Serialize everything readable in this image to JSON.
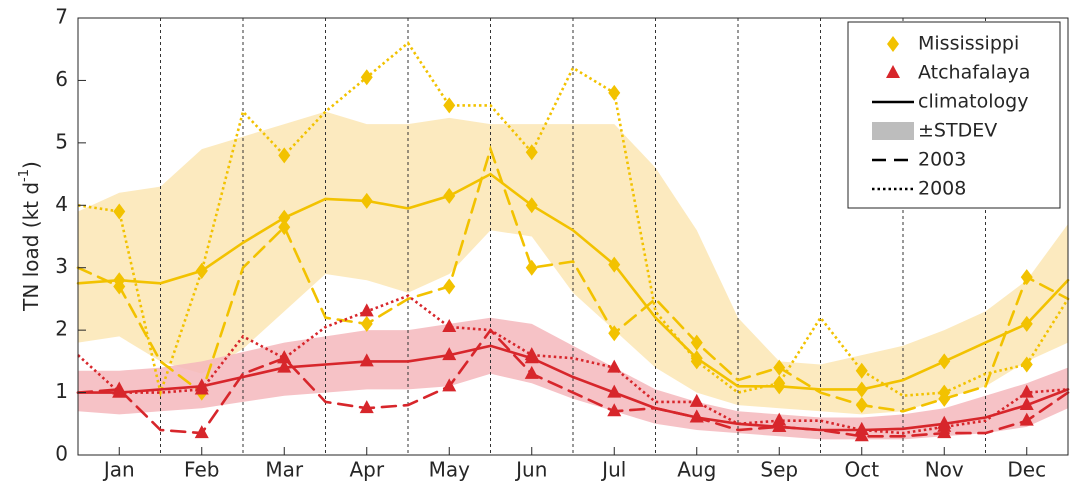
{
  "chart_data": {
    "type": "line",
    "ylabel": "TN load (kt d",
    "ylabel_sup": "-1",
    "ylabel_end": ")",
    "x": [
      0,
      0.5,
      1,
      1.5,
      2,
      2.5,
      3,
      3.5,
      4,
      4.5,
      5,
      5.5,
      6,
      6.5,
      7,
      7.5,
      8,
      8.5,
      9,
      9.5,
      10,
      10.5,
      11,
      11.5,
      12
    ],
    "xlim": [
      0,
      12
    ],
    "xticks": [
      {
        "value": 0.5,
        "label": "Jan"
      },
      {
        "value": 1.5,
        "label": "Feb"
      },
      {
        "value": 2.5,
        "label": "Mar"
      },
      {
        "value": 3.5,
        "label": "Apr"
      },
      {
        "value": 4.5,
        "label": "May"
      },
      {
        "value": 5.5,
        "label": "Jun"
      },
      {
        "value": 6.5,
        "label": "Jul"
      },
      {
        "value": 7.5,
        "label": "Aug"
      },
      {
        "value": 8.5,
        "label": "Sep"
      },
      {
        "value": 9.5,
        "label": "Oct"
      },
      {
        "value": 10.5,
        "label": "Nov"
      },
      {
        "value": 11.5,
        "label": "Dec"
      }
    ],
    "ylim": [
      0,
      7
    ],
    "yticks": [
      0,
      1,
      2,
      3,
      4,
      5,
      6,
      7
    ],
    "legend": "upper right",
    "band_name": "±STDEV",
    "band_legend_color": "#bdbdbd",
    "styles": [
      {
        "name": "climatology",
        "dash": "solid"
      },
      {
        "name": "2003",
        "dash": "dash"
      },
      {
        "name": "2008",
        "dash": "dot"
      }
    ],
    "groups": [
      {
        "name": "Mississippi",
        "color": "#f2c200",
        "fill": "#fbe6b4",
        "marker": "diamond",
        "band": {
          "upper": [
            3.9,
            4.2,
            4.3,
            4.9,
            5.1,
            5.3,
            5.5,
            5.3,
            5.3,
            5.4,
            5.3,
            5.3,
            5.3,
            5.3,
            4.6,
            3.6,
            2.2,
            1.5,
            1.45,
            1.6,
            1.75,
            2.0,
            2.3,
            2.8,
            3.7
          ],
          "lower": [
            1.8,
            1.9,
            1.5,
            1.3,
            1.7,
            2.3,
            2.9,
            2.8,
            2.6,
            2.9,
            3.6,
            3.5,
            2.6,
            2.0,
            1.4,
            1.0,
            0.8,
            0.75,
            0.7,
            0.65,
            0.7,
            0.9,
            1.1,
            1.5,
            1.8
          ]
        },
        "lines": [
          [
            2.75,
            2.8,
            2.75,
            2.95,
            3.4,
            3.8,
            4.1,
            4.07,
            3.95,
            4.15,
            4.5,
            4.0,
            3.6,
            3.05,
            2.2,
            1.55,
            1.1,
            1.1,
            1.05,
            1.05,
            1.2,
            1.5,
            1.8,
            2.1,
            2.8
          ],
          [
            3.0,
            2.7,
            1.5,
            1.0,
            3.0,
            3.65,
            2.2,
            2.1,
            2.5,
            2.7,
            4.9,
            3.0,
            3.1,
            1.95,
            2.5,
            1.8,
            1.2,
            1.4,
            1.0,
            0.8,
            0.7,
            0.9,
            1.1,
            2.85,
            2.5
          ],
          [
            4.0,
            3.9,
            1.0,
            2.95,
            5.5,
            4.8,
            5.5,
            6.05,
            6.6,
            5.6,
            5.6,
            4.85,
            6.2,
            5.8,
            2.3,
            1.5,
            1.0,
            1.15,
            2.2,
            1.35,
            0.95,
            1.0,
            1.3,
            1.45,
            2.5
          ]
        ]
      },
      {
        "name": "Atchafalaya",
        "color": "#d7262b",
        "fill": "#f4b7bc",
        "marker": "triangle",
        "band": {
          "upper": [
            1.35,
            1.35,
            1.4,
            1.5,
            1.65,
            1.8,
            1.9,
            2.0,
            2.0,
            2.1,
            2.2,
            2.1,
            1.75,
            1.4,
            1.05,
            0.85,
            0.7,
            0.65,
            0.6,
            0.6,
            0.65,
            0.75,
            0.95,
            1.15,
            1.4
          ],
          "lower": [
            0.7,
            0.65,
            0.7,
            0.75,
            0.85,
            0.95,
            1.0,
            1.05,
            1.05,
            1.1,
            1.3,
            1.15,
            0.9,
            0.7,
            0.5,
            0.4,
            0.35,
            0.3,
            0.25,
            0.25,
            0.25,
            0.3,
            0.35,
            0.45,
            0.75
          ]
        },
        "lines": [
          [
            1.0,
            1.0,
            1.05,
            1.1,
            1.25,
            1.4,
            1.45,
            1.5,
            1.5,
            1.6,
            1.75,
            1.55,
            1.25,
            1.0,
            0.75,
            0.6,
            0.5,
            0.45,
            0.4,
            0.4,
            0.42,
            0.5,
            0.6,
            0.8,
            1.05
          ],
          [
            1.0,
            1.05,
            0.4,
            0.35,
            1.3,
            1.55,
            0.85,
            0.75,
            0.8,
            1.1,
            2.0,
            1.3,
            1.0,
            0.7,
            0.75,
            0.6,
            0.4,
            0.45,
            0.4,
            0.3,
            0.3,
            0.35,
            0.35,
            0.55,
            1.0
          ],
          [
            1.6,
            1.0,
            1.0,
            1.05,
            1.9,
            1.55,
            2.05,
            2.3,
            2.55,
            2.05,
            2.0,
            1.6,
            1.55,
            1.4,
            0.85,
            0.85,
            0.5,
            0.55,
            0.55,
            0.4,
            0.35,
            0.45,
            0.55,
            1.0,
            1.05
          ]
        ]
      }
    ]
  }
}
